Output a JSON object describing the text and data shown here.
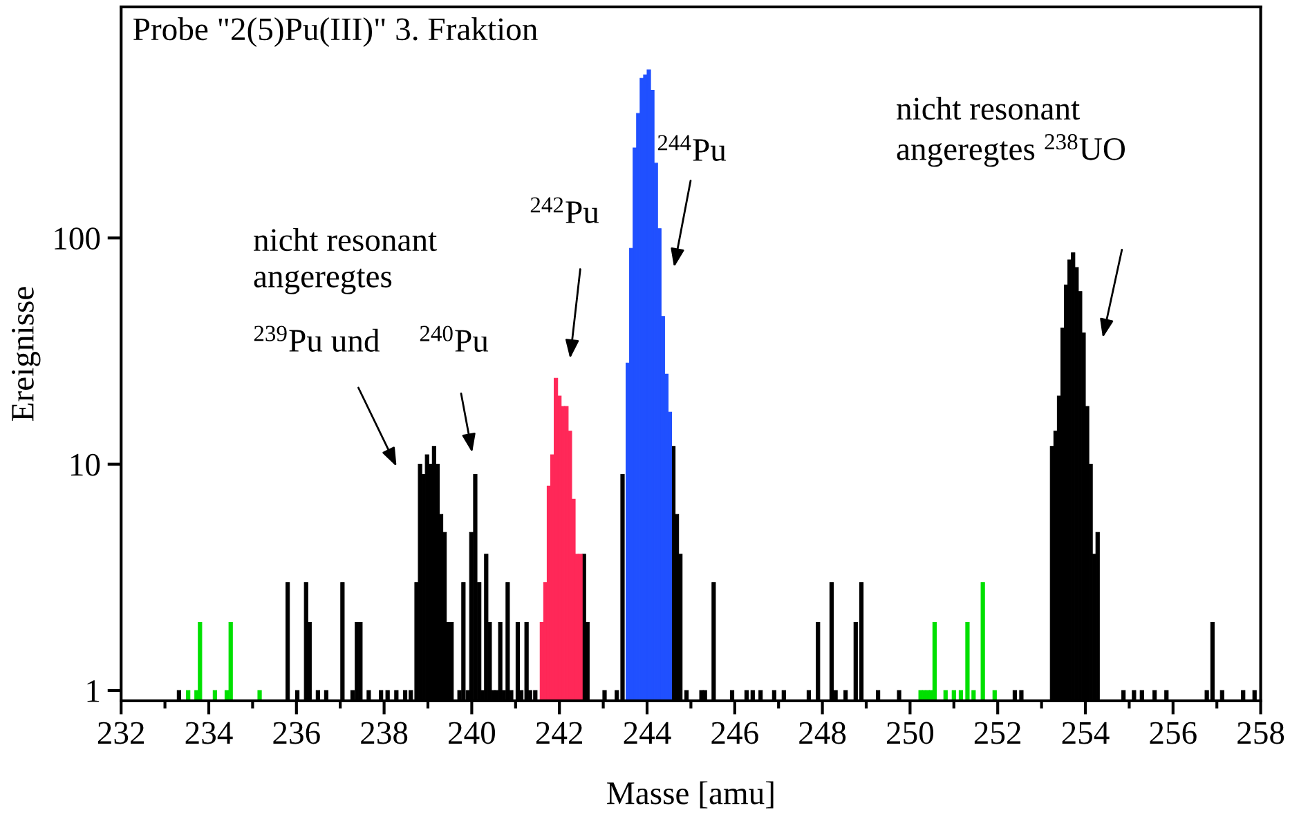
{
  "chart_data": {
    "type": "bar",
    "title": "Probe \"2(5)Pu(III)\" 3. Fraktion",
    "xlabel": "Masse [amu]",
    "ylabel": "Ereignisse",
    "log": "y",
    "xlim": [
      232,
      258
    ],
    "ylim": [
      0.9,
      1050
    ],
    "xticks": [
      232,
      {
        "value": 233,
        "label": null
      },
      234,
      {
        "value": 235,
        "label": null
      },
      236,
      {
        "value": 237,
        "label": null
      },
      238,
      {
        "value": 239,
        "label": null
      },
      240,
      {
        "value": 241,
        "label": null
      },
      242,
      {
        "value": 243,
        "label": null
      },
      244,
      {
        "value": 245,
        "label": null
      },
      246,
      {
        "value": 247,
        "label": null
      },
      248,
      {
        "value": 249,
        "label": null
      },
      250,
      {
        "value": 251,
        "label": null
      },
      252,
      {
        "value": 253,
        "label": null
      },
      254,
      {
        "value": 255,
        "label": null
      },
      256,
      {
        "value": 257,
        "label": null
      },
      258
    ],
    "yticks": [
      1,
      10,
      100
    ],
    "grid": false,
    "series": [
      {
        "color": "#00e000",
        "x": [
          233.53,
          233.72,
          233.8,
          234.14,
          234.41,
          234.5,
          235.16,
          250.24,
          250.32,
          250.4,
          250.48,
          250.56,
          250.81,
          251.0,
          251.16,
          251.31,
          251.45,
          251.66,
          251.93
        ],
        "values": [
          1,
          1,
          2,
          1,
          1,
          2,
          1,
          1,
          1,
          1,
          1,
          2,
          1,
          1,
          1,
          2,
          1,
          3,
          1
        ]
      },
      {
        "color": "#000000",
        "x": [
          233.32,
          235.8,
          236.02,
          236.22,
          236.3,
          236.49,
          236.68,
          237.05,
          237.28,
          237.38,
          237.46,
          237.65,
          237.93,
          238.08,
          238.28,
          238.48,
          238.61,
          238.74,
          238.82,
          238.9,
          238.98,
          239.06,
          239.14,
          239.22,
          239.3,
          239.38,
          239.46,
          239.54,
          239.72,
          239.81,
          239.91,
          239.99,
          240.08,
          240.17,
          240.25,
          240.33,
          240.41,
          240.49,
          240.57,
          240.65,
          240.73,
          240.82,
          240.9,
          241.05,
          241.13,
          241.25,
          241.33,
          241.45,
          242.56,
          242.64,
          243.03,
          243.31,
          243.44,
          244.6,
          244.68,
          244.76,
          244.9,
          245.24,
          245.32,
          245.52,
          245.94,
          246.27,
          246.41,
          246.59,
          246.9,
          247.12,
          247.69,
          247.9,
          248.21,
          248.3,
          248.53,
          248.76,
          248.89,
          249.27,
          249.75,
          252.39,
          252.54,
          253.24,
          253.32,
          253.4,
          253.48,
          253.56,
          253.64,
          253.72,
          253.8,
          253.88,
          253.96,
          254.04,
          254.12,
          254.2,
          254.28,
          254.87,
          255.11,
          255.29,
          255.58,
          255.85,
          256.77,
          256.9,
          257.12,
          257.6,
          257.86
        ],
        "values": [
          1,
          3,
          1,
          3,
          2,
          1,
          1,
          3,
          1,
          2,
          2,
          1,
          1,
          1,
          1,
          1,
          1,
          3,
          10,
          9,
          11,
          10,
          12,
          10,
          6,
          5,
          2,
          2,
          1,
          3,
          1,
          5,
          9,
          3,
          1,
          4,
          2,
          1,
          1,
          2,
          1,
          3,
          1,
          2,
          1,
          2,
          1,
          1,
          4,
          2,
          1,
          1,
          9,
          12,
          6,
          4,
          1,
          1,
          1,
          3,
          1,
          1,
          1,
          1,
          1,
          1,
          1,
          2,
          3,
          1,
          1,
          2,
          3,
          1,
          1,
          1,
          1,
          12,
          14,
          20,
          40,
          62,
          80,
          86,
          74,
          58,
          38,
          18,
          10,
          4,
          5,
          1,
          1,
          1,
          1,
          1,
          1,
          2,
          1,
          1,
          1
        ]
      },
      {
        "color": "#ff2858",
        "x": [
          241.6,
          241.68,
          241.76,
          241.84,
          241.92,
          242.0,
          242.08,
          242.16,
          242.24,
          242.32,
          242.4,
          242.48
        ],
        "values": [
          2,
          3,
          8,
          11,
          24,
          20,
          18,
          18,
          14,
          7,
          4,
          4
        ]
      },
      {
        "color": "#2050ff",
        "x": [
          243.56,
          243.64,
          243.72,
          243.8,
          243.88,
          243.96,
          244.04,
          244.12,
          244.2,
          244.28,
          244.36,
          244.44,
          244.52
        ],
        "values": [
          28,
          90,
          250,
          355,
          508,
          526,
          553,
          450,
          214,
          110,
          45,
          25,
          17
        ]
      }
    ],
    "annotations": [
      "nicht resonant\nangeregtes",
      "$^{239}$Pu und",
      "$^{240}$Pu",
      "$^{242}$Pu",
      "$^{244}$Pu",
      "nicht resonant\nangeregtes $^{238}$UO"
    ]
  }
}
